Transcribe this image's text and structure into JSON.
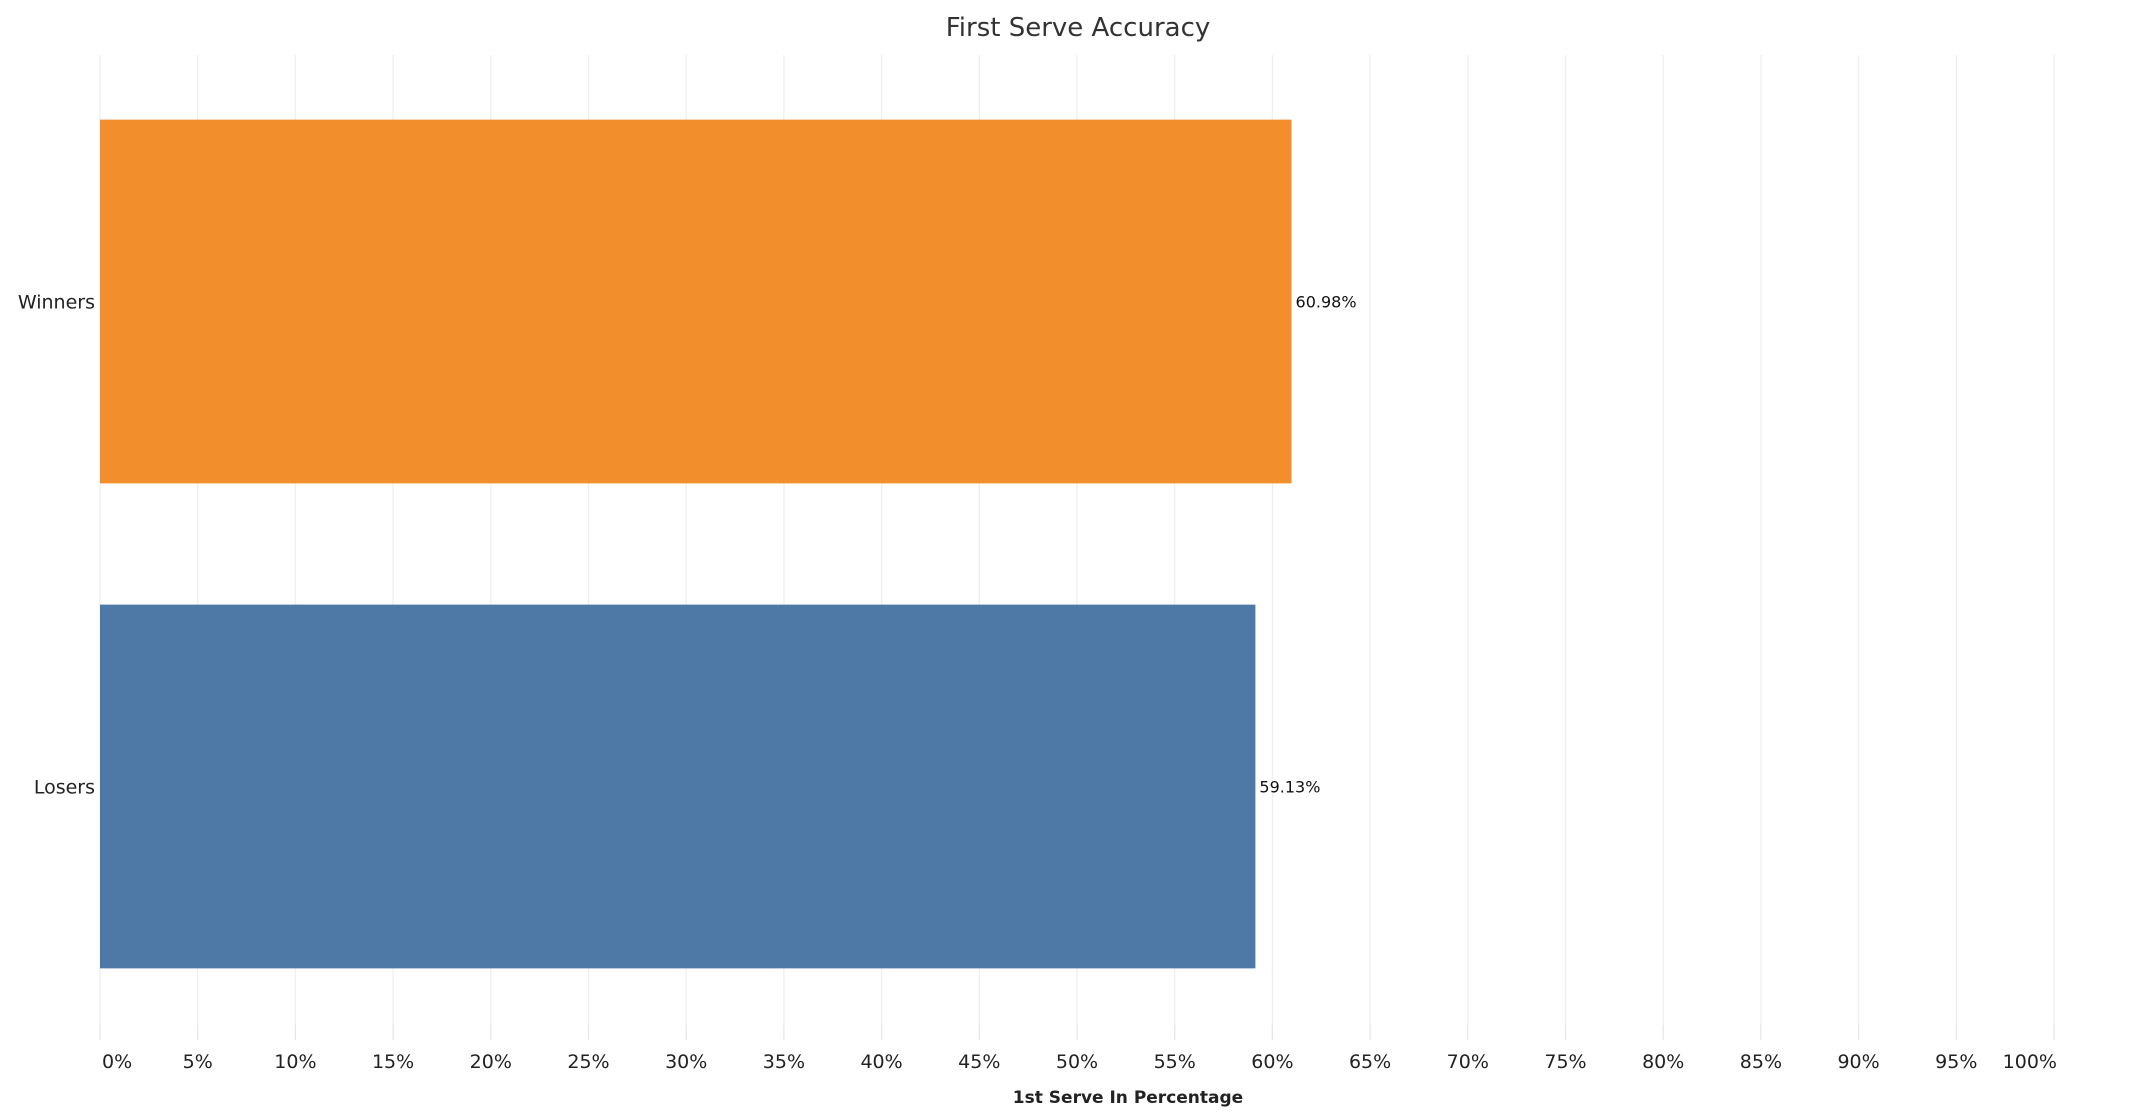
{
  "chart_data": {
    "type": "bar",
    "orientation": "horizontal",
    "title": "First Serve Accuracy",
    "xlabel": "1st Serve In Percentage",
    "ylabel": "",
    "categories": [
      "Winners",
      "Losers"
    ],
    "values": [
      60.98,
      59.13
    ],
    "data_labels": [
      "60.98%",
      "59.13%"
    ],
    "colors": [
      "#F28E2B",
      "#4E79A7"
    ],
    "xlim": [
      0,
      100
    ],
    "x_ticks": [
      0,
      5,
      10,
      15,
      20,
      25,
      30,
      35,
      40,
      45,
      50,
      55,
      60,
      65,
      70,
      75,
      80,
      85,
      90,
      95,
      100
    ],
    "x_tick_labels": [
      "0%",
      "5%",
      "10%",
      "15%",
      "20%",
      "25%",
      "30%",
      "35%",
      "40%",
      "45%",
      "50%",
      "55%",
      "60%",
      "65%",
      "70%",
      "75%",
      "80%",
      "85%",
      "90%",
      "95%",
      "100%"
    ],
    "grid": true,
    "legend": "none"
  }
}
